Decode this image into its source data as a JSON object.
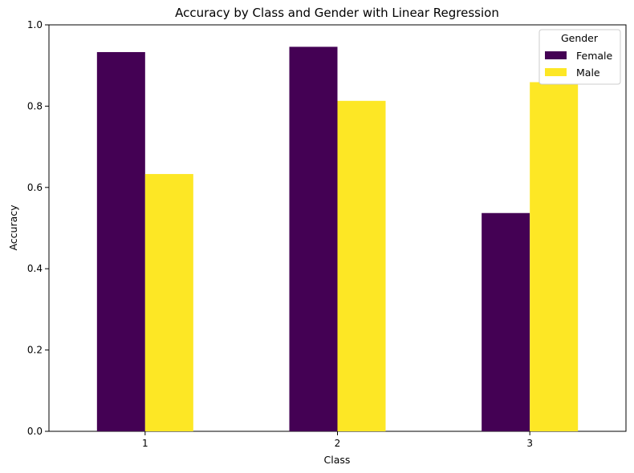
{
  "chart_data": {
    "type": "bar",
    "title": "Accuracy by Class and Gender with Linear Regression",
    "xlabel": "Class",
    "ylabel": "Accuracy",
    "categories": [
      "1",
      "2",
      "3"
    ],
    "series": [
      {
        "name": "Female",
        "color": "#440154",
        "values": [
          0.933,
          0.946,
          0.537
        ]
      },
      {
        "name": "Male",
        "color": "#fde725",
        "values": [
          0.633,
          0.813,
          0.859
        ]
      }
    ],
    "ylim": [
      0,
      1.0
    ],
    "yticks": [
      "0.0",
      "0.2",
      "0.4",
      "0.6",
      "0.8",
      "1.0"
    ],
    "legend": {
      "title": "Gender",
      "placement": "top-right"
    },
    "grid": false
  }
}
